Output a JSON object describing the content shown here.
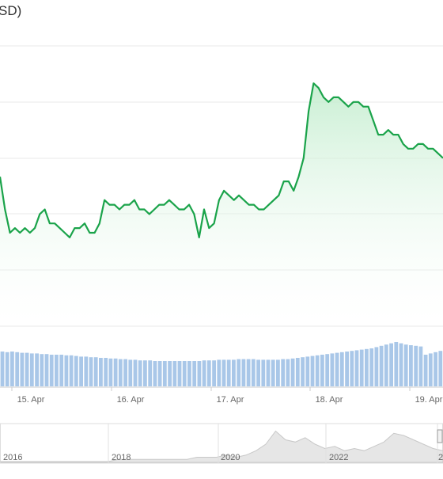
{
  "chart_data": {
    "type": "line",
    "title": "SD)",
    "colors": {
      "line": "#1aa34a",
      "area_top": "#bfeccb",
      "volume": "#a9c7e8",
      "navigator_area": "#e6e6e6",
      "axis_text": "#666666",
      "grid": "#e8e8e8"
    },
    "main": {
      "x_tick_labels": [
        "15. Apr",
        "16. Apr",
        "17. Apr",
        "18. Apr",
        "19. Apr"
      ],
      "price_series": {
        "values": [
          52,
          45,
          40,
          41,
          40,
          41,
          40,
          41,
          44,
          45,
          42,
          42,
          41,
          40,
          39,
          41,
          41,
          42,
          40,
          40,
          42,
          47,
          46,
          46,
          45,
          46,
          46,
          47,
          45,
          45,
          44,
          45,
          46,
          46,
          47,
          46,
          45,
          45,
          46,
          44,
          39,
          45,
          41,
          42,
          47,
          49,
          48,
          47,
          48,
          47,
          46,
          46,
          45,
          45,
          46,
          47,
          48,
          51,
          51,
          49,
          52,
          56,
          66,
          72,
          71,
          69,
          68,
          69,
          69,
          68,
          67,
          68,
          68,
          67,
          67,
          64,
          61,
          61,
          62,
          61,
          61,
          59,
          58,
          58,
          59,
          59,
          58,
          58,
          57,
          56
        ],
        "y_grid_lines": 5,
        "y_tick_labels": []
      },
      "volume_series": {
        "values": [
          55,
          54,
          55,
          54,
          53,
          53,
          52,
          52,
          51,
          51,
          50,
          50,
          50,
          49,
          49,
          48,
          47,
          47,
          46,
          46,
          45,
          45,
          44,
          44,
          43,
          43,
          42,
          42,
          41,
          41,
          41,
          40,
          40,
          40,
          40,
          40,
          40,
          40,
          40,
          40,
          40,
          41,
          41,
          41,
          42,
          42,
          42,
          42,
          43,
          43,
          43,
          43,
          42,
          42,
          42,
          42,
          42,
          43,
          43,
          44,
          45,
          46,
          47,
          48,
          49,
          50,
          51,
          52,
          53,
          54,
          55,
          56,
          57,
          58,
          59,
          60,
          62,
          64,
          66,
          68,
          70,
          68,
          66,
          65,
          64,
          63,
          50,
          52,
          54,
          56
        ]
      }
    },
    "navigator": {
      "x_tick_labels": [
        "2016",
        "2018",
        "2020",
        "2022",
        "2"
      ],
      "values": [
        0,
        0,
        0,
        0,
        0,
        0,
        0,
        0,
        0,
        0,
        0,
        0,
        1,
        1,
        1,
        1,
        1,
        1,
        1,
        1,
        2,
        2,
        2,
        3,
        2,
        3,
        5,
        8,
        14,
        10,
        9,
        11,
        8,
        6,
        7,
        5,
        6,
        5,
        7,
        9,
        13,
        12,
        10,
        8,
        6,
        5
      ]
    }
  }
}
